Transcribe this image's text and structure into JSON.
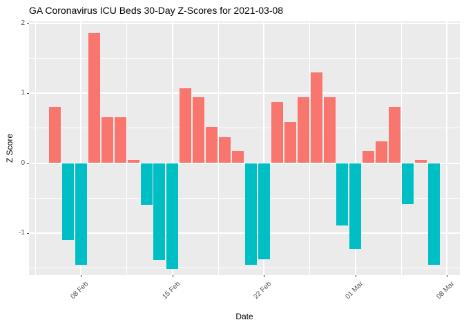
{
  "chart_data": {
    "type": "bar",
    "title": "GA Coronavirus ICU Beds 30-Day Z-Scores for 2021-03-08",
    "xlabel": "Date",
    "ylabel": "Z Score",
    "x": [
      "2021-02-06",
      "2021-02-07",
      "2021-02-08",
      "2021-02-09",
      "2021-02-10",
      "2021-02-11",
      "2021-02-12",
      "2021-02-13",
      "2021-02-14",
      "2021-02-15",
      "2021-02-16",
      "2021-02-17",
      "2021-02-18",
      "2021-02-19",
      "2021-02-20",
      "2021-02-21",
      "2021-02-22",
      "2021-02-23",
      "2021-02-24",
      "2021-02-25",
      "2021-02-26",
      "2021-02-27",
      "2021-02-28",
      "2021-03-01",
      "2021-03-02",
      "2021-03-03",
      "2021-03-04",
      "2021-03-05",
      "2021-03-06",
      "2021-03-07"
    ],
    "values": [
      0.8,
      -1.1,
      -1.45,
      1.86,
      0.66,
      0.66,
      0.04,
      -0.6,
      -1.38,
      -1.51,
      1.07,
      0.94,
      0.52,
      0.37,
      0.17,
      -1.45,
      -1.37,
      0.87,
      0.59,
      0.94,
      1.3,
      0.94,
      -0.89,
      -1.23,
      0.17,
      0.31,
      0.8,
      -0.59,
      0.04,
      -1.45
    ],
    "ylim": [
      -1.62,
      2.02
    ],
    "y_ticks": [
      2,
      1,
      0,
      -1
    ],
    "y_minor_ticks": [
      1.5,
      0.5,
      -0.5,
      -1.5
    ],
    "x_ticks": [
      {
        "label": "08 Feb",
        "day": 2
      },
      {
        "label": "15 Feb",
        "day": 9
      },
      {
        "label": "22 Feb",
        "day": 16
      },
      {
        "label": "01 Mar",
        "day": 23
      },
      {
        "label": "08 Mar",
        "day": 30
      }
    ],
    "x_minor_days": [
      -1.5,
      5.5,
      12.5,
      19.5,
      26.5
    ],
    "grid": true,
    "legend": false,
    "colors": {
      "positive": "#F8766D",
      "negative": "#00BFC4",
      "panel_bg": "#EBEBEB",
      "grid": "#FFFFFF",
      "tick_text": "#4D4D4D",
      "tick_mark": "#333333",
      "title_text": "#000000"
    }
  }
}
